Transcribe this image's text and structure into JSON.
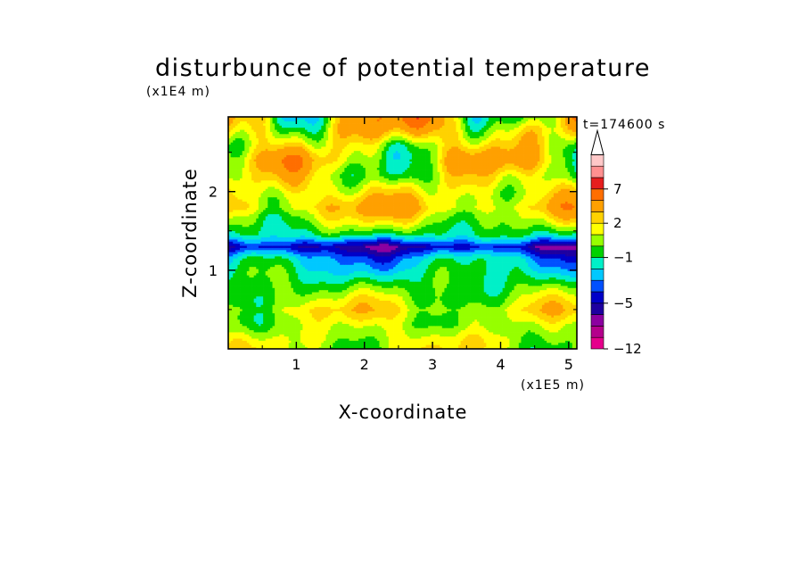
{
  "chart_data": {
    "type": "heatmap",
    "title": "disturbunce of potential temperature",
    "time_label": "t=174600 s",
    "xlabel": "X-coordinate",
    "ylabel": "Z-coordinate",
    "x_unit": "(x1E5 m)",
    "y_unit": "(x1E4 m)",
    "x_ticks": [
      "1",
      "2",
      "3",
      "4",
      "5"
    ],
    "x_tick_values": [
      1,
      2,
      3,
      4,
      5
    ],
    "y_ticks": [
      "1",
      "2"
    ],
    "y_tick_values": [
      1,
      2
    ],
    "xlim": [
      0,
      5.12
    ],
    "ylim": [
      0,
      2.95
    ],
    "colorbar": {
      "labels": [
        "7",
        "2",
        "−1",
        "−5",
        "−12"
      ],
      "label_levels": [
        7,
        2,
        -1,
        -5,
        -12
      ],
      "levels": [
        -12,
        -10,
        -8,
        -6,
        -5,
        -4,
        -3,
        -2,
        -1,
        0,
        1,
        2,
        3,
        5,
        7,
        9,
        11
      ],
      "colors": [
        "#e6008c",
        "#b4008c",
        "#8c00a0",
        "#1e00a0",
        "#0000c8",
        "#0050ff",
        "#00c8ff",
        "#00f0c8",
        "#00d200",
        "#96ff00",
        "#ffff00",
        "#ffd200",
        "#ffa000",
        "#ff6e00",
        "#e61e1e",
        "#ff9090",
        "#ffc8c8"
      ],
      "extend": "max"
    },
    "z_profile": [
      {
        "z": 0.1,
        "value": 1.0
      },
      {
        "z": 0.3,
        "value": 0.6
      },
      {
        "z": 0.5,
        "value": 1.5
      },
      {
        "z": 0.7,
        "value": 0.3
      },
      {
        "z": 0.85,
        "value": -0.6
      },
      {
        "z": 1.0,
        "value": -1.5
      },
      {
        "z": 1.15,
        "value": -2.4
      },
      {
        "z": 1.3,
        "value": -5.2
      },
      {
        "z": 1.45,
        "value": -1.1
      },
      {
        "z": 1.6,
        "value": 0.6
      },
      {
        "z": 1.8,
        "value": 2.6
      },
      {
        "z": 2.0,
        "value": 1.6
      },
      {
        "z": 2.2,
        "value": 1.0
      },
      {
        "z": 2.4,
        "value": 1.8
      },
      {
        "z": 2.6,
        "value": 1.3
      },
      {
        "z": 2.8,
        "value": 2.2
      }
    ]
  }
}
